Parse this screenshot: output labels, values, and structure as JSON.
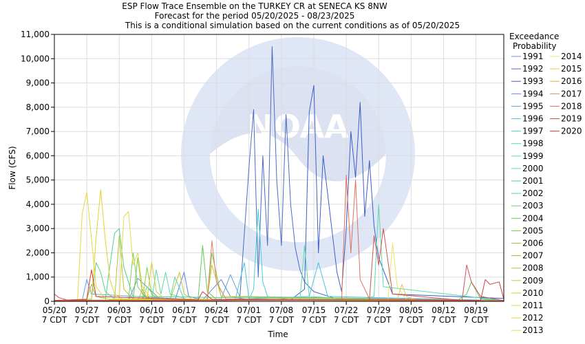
{
  "chart_data": {
    "type": "line",
    "title": "ESP Flow Trace Ensemble on the TURKEY CR at SENECA KS 8NW",
    "subtitle": "Forecast for the period 05/20/2025 - 08/23/2025",
    "subtitle2": "This is a conditional simulation based on the current conditions as of 05/20/2025",
    "xlabel": "Time",
    "ylabel": "Flow (CFS)",
    "ylim": [
      0,
      11000
    ],
    "yticks": [
      "0",
      "1,000",
      "2,000",
      "3,000",
      "4,000",
      "5,000",
      "6,000",
      "7,000",
      "8,000",
      "9,000",
      "10,000",
      "11,000"
    ],
    "xlim": [
      "2025-05-20",
      "2025-08-25"
    ],
    "xticks": [
      {
        "date": "2025-05-20",
        "l1": "05/20",
        "l2": "7 CDT"
      },
      {
        "date": "2025-05-27",
        "l1": "05/27",
        "l2": "7 CDT"
      },
      {
        "date": "2025-06-03",
        "l1": "06/03",
        "l2": "7 CDT"
      },
      {
        "date": "2025-06-10",
        "l1": "06/10",
        "l2": "7 CDT"
      },
      {
        "date": "2025-06-17",
        "l1": "06/17",
        "l2": "7 CDT"
      },
      {
        "date": "2025-06-24",
        "l1": "06/24",
        "l2": "7 CDT"
      },
      {
        "date": "2025-07-01",
        "l1": "07/01",
        "l2": "7 CDT"
      },
      {
        "date": "2025-07-08",
        "l1": "07/08",
        "l2": "7 CDT"
      },
      {
        "date": "2025-07-15",
        "l1": "07/15",
        "l2": "7 CDT"
      },
      {
        "date": "2025-07-22",
        "l1": "07/22",
        "l2": "7 CDT"
      },
      {
        "date": "2025-07-29",
        "l1": "07/29",
        "l2": "7 CDT"
      },
      {
        "date": "2025-08-05",
        "l1": "08/05",
        "l2": "7 CDT"
      },
      {
        "date": "2025-08-12",
        "l1": "08/12",
        "l2": "7 CDT"
      },
      {
        "date": "2025-08-19",
        "l1": "08/19",
        "l2": "7 CDT"
      }
    ],
    "grid": true,
    "legend_title": [
      "Exceedance",
      "Probability"
    ],
    "legend_position": "right",
    "series": [
      {
        "name": "1991",
        "color": "#6f8fd6",
        "x": [
          "2025-05-20",
          "2025-06-01",
          "2025-06-05",
          "2025-06-07",
          "2025-06-12",
          "2025-06-26",
          "2025-06-29",
          "2025-07-12",
          "2025-07-20",
          "2025-08-25"
        ],
        "y": [
          20,
          30,
          40,
          950,
          60,
          40,
          80,
          60,
          40,
          20
        ]
      },
      {
        "name": "1992",
        "color": "#4a6bc4",
        "x": [
          "2025-05-20",
          "2025-06-26",
          "2025-06-29",
          "2025-07-01",
          "2025-07-02",
          "2025-07-03",
          "2025-07-04",
          "2025-07-05",
          "2025-07-06",
          "2025-07-07",
          "2025-07-08",
          "2025-07-09",
          "2025-07-10",
          "2025-07-11",
          "2025-07-12",
          "2025-07-13",
          "2025-07-15",
          "2025-07-20",
          "2025-08-25"
        ],
        "y": [
          20,
          40,
          60,
          5500,
          7900,
          1000,
          6000,
          2300,
          10500,
          5000,
          2300,
          7700,
          4000,
          2200,
          1300,
          800,
          400,
          100,
          20
        ]
      },
      {
        "name": "1993",
        "color": "#3a5ec8",
        "x": [
          "2025-05-20",
          "2025-07-10",
          "2025-07-13",
          "2025-07-14",
          "2025-07-15",
          "2025-07-16",
          "2025-07-17",
          "2025-07-20",
          "2025-07-21",
          "2025-07-22",
          "2025-07-23",
          "2025-07-24",
          "2025-07-25",
          "2025-07-26",
          "2025-07-27",
          "2025-07-28",
          "2025-07-29",
          "2025-08-01",
          "2025-08-25"
        ],
        "y": [
          20,
          60,
          500,
          7800,
          8900,
          2000,
          6000,
          1200,
          400,
          3000,
          7000,
          5100,
          8200,
          3500,
          5800,
          3100,
          1800,
          300,
          120
        ]
      },
      {
        "name": "1994",
        "color": "#5d86e0",
        "x": [
          "2025-05-20",
          "2025-06-15",
          "2025-06-17",
          "2025-06-18",
          "2025-06-21",
          "2025-06-25",
          "2025-06-27",
          "2025-07-01",
          "2025-08-25"
        ],
        "y": [
          20,
          40,
          1200,
          200,
          60,
          900,
          200,
          60,
          20
        ]
      },
      {
        "name": "1995",
        "color": "#59a4e8",
        "x": [
          "2025-05-20",
          "2025-05-26",
          "2025-05-27",
          "2025-05-28",
          "2025-06-20",
          "2025-06-25",
          "2025-06-27",
          "2025-06-29",
          "2025-08-25"
        ],
        "y": [
          20,
          40,
          900,
          300,
          60,
          100,
          1100,
          200,
          40
        ]
      },
      {
        "name": "1996",
        "color": "#49c4e0",
        "x": [
          "2025-05-20",
          "2025-06-28",
          "2025-06-30",
          "2025-07-01",
          "2025-07-14",
          "2025-07-16",
          "2025-07-18",
          "2025-08-25"
        ],
        "y": [
          20,
          40,
          1600,
          100,
          200,
          1600,
          200,
          30
        ]
      },
      {
        "name": "1997",
        "color": "#48d0d0",
        "x": [
          "2025-05-20",
          "2025-07-01",
          "2025-07-02",
          "2025-07-03",
          "2025-07-04",
          "2025-07-05",
          "2025-07-10",
          "2025-08-25"
        ],
        "y": [
          20,
          60,
          500,
          3800,
          800,
          200,
          60,
          20
        ]
      },
      {
        "name": "1998",
        "color": "#52d6be",
        "x": [
          "2025-05-20",
          "2025-06-08",
          "2025-06-09",
          "2025-06-11",
          "2025-06-14",
          "2025-06-15",
          "2025-06-17",
          "2025-08-25"
        ],
        "y": [
          20,
          40,
          600,
          100,
          100,
          1000,
          100,
          20
        ]
      },
      {
        "name": "1999",
        "color": "#58dbac",
        "x": [
          "2025-05-20",
          "2025-07-12",
          "2025-07-13",
          "2025-07-14",
          "2025-07-25",
          "2025-07-28",
          "2025-07-29",
          "2025-07-30",
          "2025-08-25"
        ],
        "y": [
          20,
          60,
          2300,
          200,
          80,
          200,
          4000,
          600,
          30
        ]
      },
      {
        "name": "2000",
        "color": "#5cd99a",
        "x": [
          "2025-05-20",
          "2025-06-10",
          "2025-06-11",
          "2025-06-12",
          "2025-06-13",
          "2025-06-14",
          "2025-06-18",
          "2025-08-25"
        ],
        "y": [
          20,
          40,
          1300,
          300,
          1200,
          300,
          60,
          20
        ]
      },
      {
        "name": "2001",
        "color": "#4ecf88",
        "x": [
          "2025-05-20",
          "2025-05-31",
          "2025-06-01",
          "2025-06-02",
          "2025-06-03",
          "2025-06-04",
          "2025-06-06",
          "2025-08-25"
        ],
        "y": [
          20,
          60,
          1500,
          2800,
          3000,
          1400,
          200,
          20
        ]
      },
      {
        "name": "2002",
        "color": "#5cd47a",
        "x": [
          "2025-05-20",
          "2025-05-28",
          "2025-05-29",
          "2025-05-30",
          "2025-05-31",
          "2025-06-02",
          "2025-08-25"
        ],
        "y": [
          20,
          60,
          1600,
          1200,
          400,
          100,
          20
        ]
      },
      {
        "name": "2003",
        "color": "#6fd06a",
        "x": [
          "2025-05-20",
          "2025-06-05",
          "2025-06-06",
          "2025-06-07",
          "2025-06-09",
          "2025-08-25"
        ],
        "y": [
          20,
          60,
          2000,
          600,
          100,
          20
        ]
      },
      {
        "name": "2004",
        "color": "#63c95a",
        "x": [
          "2025-05-20",
          "2025-06-20",
          "2025-06-21",
          "2025-06-22",
          "2025-06-24",
          "2025-08-15",
          "2025-08-17",
          "2025-08-18",
          "2025-08-20",
          "2025-08-25"
        ],
        "y": [
          20,
          60,
          2300,
          400,
          80,
          40,
          300,
          800,
          100,
          30
        ]
      },
      {
        "name": "2005",
        "color": "#78c94a",
        "x": [
          "2025-05-20",
          "2025-06-06",
          "2025-06-07",
          "2025-06-08",
          "2025-06-10",
          "2025-06-22",
          "2025-06-23",
          "2025-06-25",
          "2025-08-25"
        ],
        "y": [
          20,
          60,
          1800,
          300,
          80,
          80,
          2000,
          200,
          20
        ]
      },
      {
        "name": "2006",
        "color": "#8ecc3e",
        "x": [
          "2025-05-20",
          "2025-06-08",
          "2025-06-09",
          "2025-06-10",
          "2025-06-12",
          "2025-08-25"
        ],
        "y": [
          20,
          40,
          1400,
          300,
          60,
          20
        ]
      },
      {
        "name": "2007",
        "color": "#9ec03a",
        "x": [
          "2025-05-20",
          "2025-05-27",
          "2025-05-28",
          "2025-05-29",
          "2025-06-01",
          "2025-08-25"
        ],
        "y": [
          20,
          100,
          700,
          200,
          80,
          20
        ]
      },
      {
        "name": "2008",
        "color": "#b4c830",
        "x": [
          "2025-05-20",
          "2025-06-02",
          "2025-06-03",
          "2025-06-04",
          "2025-06-06",
          "2025-08-25"
        ],
        "y": [
          20,
          60,
          2700,
          500,
          100,
          20
        ]
      },
      {
        "name": "2009",
        "color": "#c6c830",
        "x": [
          "2025-05-20",
          "2025-06-14",
          "2025-06-16",
          "2025-06-17",
          "2025-06-19",
          "2025-06-22",
          "2025-06-23",
          "2025-06-25",
          "2025-08-25"
        ],
        "y": [
          20,
          60,
          1200,
          300,
          60,
          100,
          1500,
          200,
          20
        ]
      },
      {
        "name": "2010",
        "color": "#d4cc2a",
        "x": [
          "2025-05-20",
          "2025-06-09",
          "2025-06-10",
          "2025-06-11",
          "2025-06-13",
          "2025-08-25"
        ],
        "y": [
          20,
          60,
          1600,
          400,
          60,
          20
        ]
      },
      {
        "name": "2011",
        "color": "#e4d83a",
        "x": [
          "2025-05-20",
          "2025-05-25",
          "2025-05-26",
          "2025-05-27",
          "2025-05-28",
          "2025-05-29",
          "2025-05-31",
          "2025-08-25"
        ],
        "y": [
          20,
          60,
          3600,
          4500,
          2600,
          600,
          100,
          20
        ]
      },
      {
        "name": "2012",
        "color": "#e8d030",
        "x": [
          "2025-05-20",
          "2025-05-28",
          "2025-05-29",
          "2025-05-30",
          "2025-05-31",
          "2025-06-01",
          "2025-06-02",
          "2025-06-04",
          "2025-08-25"
        ],
        "y": [
          20,
          100,
          2600,
          4600,
          2500,
          900,
          300,
          60,
          20
        ]
      },
      {
        "name": "2013",
        "color": "#ead846",
        "x": [
          "2025-05-20",
          "2025-06-03",
          "2025-06-04",
          "2025-06-05",
          "2025-06-06",
          "2025-06-07",
          "2025-06-08",
          "2025-06-10",
          "2025-08-25"
        ],
        "y": [
          20,
          60,
          3500,
          3700,
          1500,
          2000,
          600,
          100,
          20
        ]
      },
      {
        "name": "2014",
        "color": "#ece36a",
        "x": [
          "2025-05-20",
          "2025-07-31",
          "2025-08-01",
          "2025-08-02",
          "2025-08-04",
          "2025-08-25"
        ],
        "y": [
          20,
          60,
          2400,
          600,
          80,
          20
        ]
      },
      {
        "name": "2015",
        "color": "#edc74a",
        "x": [
          "2025-05-20",
          "2025-08-02",
          "2025-08-03",
          "2025-08-04",
          "2025-08-06",
          "2025-08-25"
        ],
        "y": [
          20,
          60,
          700,
          200,
          60,
          20
        ]
      },
      {
        "name": "2016",
        "color": "#e8a83c",
        "x": [
          "2025-05-20",
          "2025-06-07",
          "2025-06-08",
          "2025-06-09",
          "2025-06-11",
          "2025-08-25"
        ],
        "y": [
          20,
          40,
          500,
          150,
          60,
          20
        ]
      },
      {
        "name": "2017",
        "color": "#e2805a",
        "x": [
          "2025-05-20",
          "2025-06-22",
          "2025-06-23",
          "2025-06-24",
          "2025-06-26",
          "2025-08-25"
        ],
        "y": [
          20,
          60,
          2500,
          800,
          100,
          20
        ]
      },
      {
        "name": "2018",
        "color": "#dc7060",
        "x": [
          "2025-05-20",
          "2025-07-21",
          "2025-07-22",
          "2025-07-23",
          "2025-07-24",
          "2025-07-25",
          "2025-07-27",
          "2025-08-25"
        ],
        "y": [
          20,
          60,
          5200,
          2000,
          5000,
          900,
          100,
          20
        ]
      },
      {
        "name": "2019",
        "color": "#d45050",
        "x": [
          "2025-05-20",
          "2025-05-21",
          "2025-05-23",
          "2025-07-27",
          "2025-07-28",
          "2025-07-29",
          "2025-07-30",
          "2025-08-01",
          "2025-08-16",
          "2025-08-17",
          "2025-08-18",
          "2025-08-20",
          "2025-08-25"
        ],
        "y": [
          300,
          150,
          40,
          60,
          2700,
          1500,
          3000,
          300,
          40,
          1500,
          800,
          200,
          30
        ]
      },
      {
        "name": "2020",
        "color": "#d23a3a",
        "x": [
          "2025-05-20",
          "2025-05-27",
          "2025-05-28",
          "2025-05-29",
          "2025-06-20",
          "2025-06-21",
          "2025-06-23",
          "2025-08-20",
          "2025-08-21",
          "2025-08-22",
          "2025-08-24",
          "2025-08-25"
        ],
        "y": [
          40,
          80,
          1300,
          200,
          60,
          400,
          80,
          40,
          900,
          700,
          800,
          100
        ]
      }
    ]
  }
}
